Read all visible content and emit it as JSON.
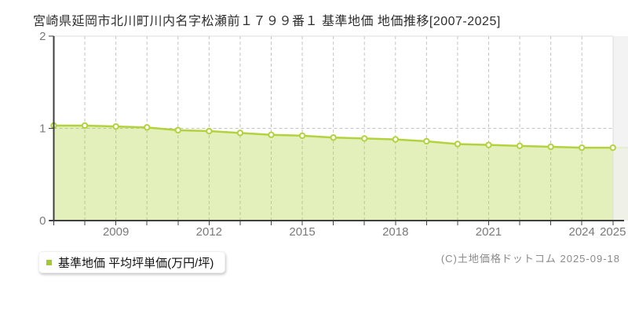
{
  "title": "宮崎県延岡市北川町川内名字松瀬前１７９９番１ 基準地価 地価推移[2007-2025]",
  "legend": {
    "label": "基準地価 平均坪単価(万円/坪)",
    "marker_color": "#a4c832"
  },
  "footer": {
    "copyright": "(C)土地価格ドットコム 2025-09-18"
  },
  "colors": {
    "line": "#b2d33e",
    "fill_opacity": 0.35,
    "point_fill": "#ffffff",
    "axis": "#3f3f3f",
    "tick_label": "#7a7a7a",
    "gridline": "#c4c4c4",
    "border": "#dedede",
    "band": "#f1f1f1"
  },
  "chart_data": {
    "type": "area",
    "title": "宮崎県延岡市北川町川内名字松瀬前１７９９番１ 基準地価 地価推移[2007-2025]",
    "unit": "万円/坪",
    "x": [
      2007,
      2008,
      2009,
      2010,
      2011,
      2012,
      2013,
      2014,
      2015,
      2016,
      2017,
      2018,
      2019,
      2020,
      2021,
      2022,
      2023,
      2024,
      2025
    ],
    "series": [
      {
        "name": "基準地価 平均坪単価(万円/坪)",
        "values": [
          1.03,
          1.03,
          1.02,
          1.01,
          0.98,
          0.97,
          0.95,
          0.93,
          0.92,
          0.9,
          0.89,
          0.88,
          0.86,
          0.83,
          0.82,
          0.81,
          0.8,
          0.79,
          0.79
        ]
      }
    ],
    "ylim": [
      0,
      2
    ],
    "yticks": [
      0,
      1,
      2
    ],
    "xtick_labels": [
      "2009",
      "2012",
      "2015",
      "2018",
      "2021",
      "2024",
      "2025"
    ],
    "grid": true,
    "legend_position": "bottom-left"
  }
}
